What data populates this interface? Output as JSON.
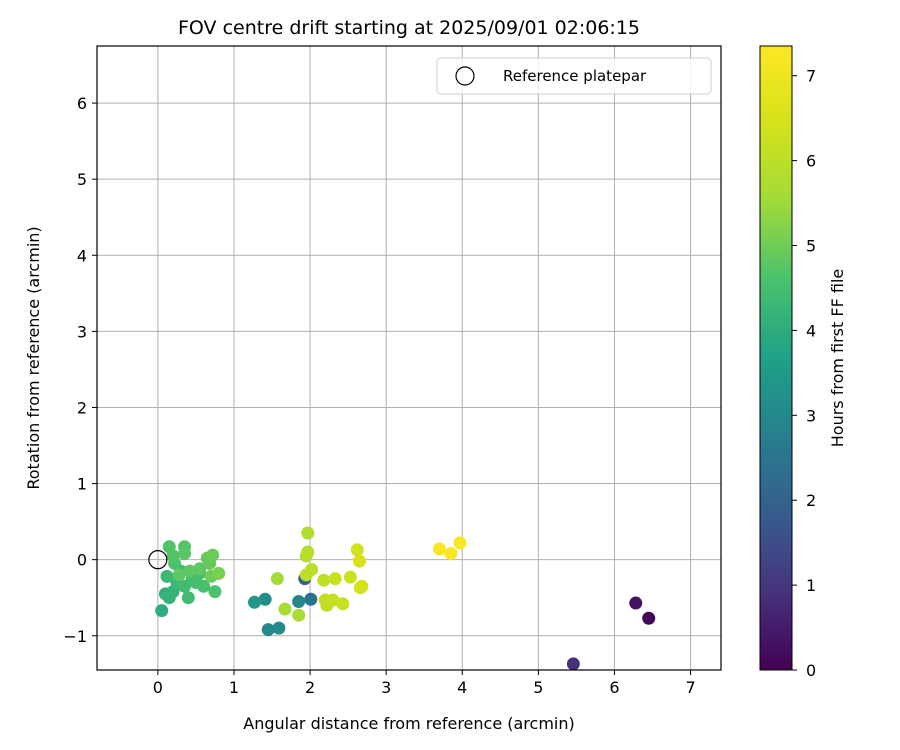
{
  "chart_data": {
    "type": "scatter",
    "title": "FOV centre drift starting at 2025/09/01 02:06:15",
    "xlabel": "Angular distance from reference (arcmin)",
    "ylabel": "Rotation from reference (arcmin)",
    "xlim": [
      -0.8,
      7.4
    ],
    "ylim": [
      -1.45,
      6.75
    ],
    "xticks": [
      0,
      1,
      2,
      3,
      4,
      5,
      6,
      7
    ],
    "yticks": [
      -1,
      0,
      1,
      2,
      3,
      4,
      5,
      6
    ],
    "grid": true,
    "legend": {
      "label": "Reference platepar",
      "placement": "top-right"
    },
    "reference_point": {
      "x": 0,
      "y": 0
    },
    "colorbar": {
      "label": "Hours from first FF file",
      "colormap": "viridis",
      "range": [
        0,
        7.35
      ],
      "ticks": [
        0,
        1,
        2,
        3,
        4,
        5,
        6,
        7
      ]
    },
    "points": [
      {
        "x": 6.45,
        "y": -0.77,
        "hours": 0.05
      },
      {
        "x": 6.28,
        "y": -0.57,
        "hours": 0.3
      },
      {
        "x": 5.46,
        "y": -1.37,
        "hours": 0.9
      },
      {
        "x": 1.93,
        "y": -0.25,
        "hours": 2.0
      },
      {
        "x": 2.01,
        "y": -0.52,
        "hours": 2.4
      },
      {
        "x": 1.85,
        "y": -0.55,
        "hours": 2.9
      },
      {
        "x": 1.45,
        "y": -0.92,
        "hours": 3.0
      },
      {
        "x": 1.59,
        "y": -0.9,
        "hours": 3.1
      },
      {
        "x": 1.41,
        "y": -0.52,
        "hours": 3.2
      },
      {
        "x": 1.27,
        "y": -0.56,
        "hours": 3.4
      },
      {
        "x": 0.05,
        "y": -0.67,
        "hours": 4.0
      },
      {
        "x": 0.1,
        "y": -0.45,
        "hours": 4.1
      },
      {
        "x": 0.15,
        "y": -0.5,
        "hours": 4.15
      },
      {
        "x": 0.2,
        "y": -0.42,
        "hours": 4.2
      },
      {
        "x": 0.12,
        "y": -0.22,
        "hours": 4.3
      },
      {
        "x": 0.25,
        "y": -0.3,
        "hours": 4.3
      },
      {
        "x": 0.3,
        "y": -0.15,
        "hours": 4.35
      },
      {
        "x": 0.4,
        "y": -0.5,
        "hours": 4.4
      },
      {
        "x": 0.35,
        "y": -0.35,
        "hours": 4.4
      },
      {
        "x": 0.45,
        "y": -0.25,
        "hours": 4.45
      },
      {
        "x": 0.5,
        "y": -0.3,
        "hours": 4.5
      },
      {
        "x": 0.55,
        "y": -0.18,
        "hours": 4.5
      },
      {
        "x": 0.6,
        "y": -0.35,
        "hours": 4.55
      },
      {
        "x": 0.22,
        "y": -0.05,
        "hours": 4.6
      },
      {
        "x": 0.15,
        "y": 0.17,
        "hours": 4.65
      },
      {
        "x": 0.2,
        "y": 0.05,
        "hours": 4.7
      },
      {
        "x": 0.35,
        "y": 0.17,
        "hours": 4.7
      },
      {
        "x": 0.35,
        "y": 0.08,
        "hours": 4.75
      },
      {
        "x": 0.28,
        "y": -0.2,
        "hours": 4.8
      },
      {
        "x": 0.42,
        "y": -0.15,
        "hours": 4.8
      },
      {
        "x": 0.55,
        "y": -0.12,
        "hours": 4.8
      },
      {
        "x": 0.65,
        "y": 0.02,
        "hours": 4.9
      },
      {
        "x": 0.68,
        "y": -0.05,
        "hours": 4.9
      },
      {
        "x": 0.72,
        "y": 0.06,
        "hours": 4.95
      },
      {
        "x": 0.7,
        "y": -0.22,
        "hours": 5.0
      },
      {
        "x": 0.75,
        "y": -0.42,
        "hours": 4.6
      },
      {
        "x": 0.8,
        "y": -0.18,
        "hours": 5.1
      },
      {
        "x": 1.57,
        "y": -0.25,
        "hours": 5.6
      },
      {
        "x": 1.67,
        "y": -0.65,
        "hours": 5.65
      },
      {
        "x": 1.85,
        "y": -0.73,
        "hours": 5.7
      },
      {
        "x": 1.97,
        "y": 0.35,
        "hours": 5.8
      },
      {
        "x": 1.97,
        "y": 0.1,
        "hours": 5.9
      },
      {
        "x": 1.95,
        "y": 0.05,
        "hours": 5.9
      },
      {
        "x": 2.02,
        "y": -0.13,
        "hours": 6.0
      },
      {
        "x": 1.95,
        "y": -0.2,
        "hours": 6.0
      },
      {
        "x": 2.18,
        "y": -0.27,
        "hours": 6.05
      },
      {
        "x": 2.2,
        "y": -0.53,
        "hours": 6.1
      },
      {
        "x": 2.22,
        "y": -0.6,
        "hours": 6.1
      },
      {
        "x": 2.3,
        "y": -0.53,
        "hours": 6.15
      },
      {
        "x": 2.33,
        "y": -0.25,
        "hours": 6.2
      },
      {
        "x": 2.43,
        "y": -0.58,
        "hours": 6.2
      },
      {
        "x": 2.53,
        "y": -0.23,
        "hours": 6.25
      },
      {
        "x": 2.62,
        "y": 0.13,
        "hours": 6.35
      },
      {
        "x": 2.65,
        "y": -0.02,
        "hours": 6.5
      },
      {
        "x": 2.66,
        "y": -0.37,
        "hours": 6.4
      },
      {
        "x": 2.68,
        "y": -0.35,
        "hours": 6.4
      },
      {
        "x": 3.7,
        "y": 0.14,
        "hours": 7.2
      },
      {
        "x": 3.85,
        "y": 0.08,
        "hours": 7.25
      },
      {
        "x": 3.97,
        "y": 0.22,
        "hours": 7.3
      }
    ]
  }
}
